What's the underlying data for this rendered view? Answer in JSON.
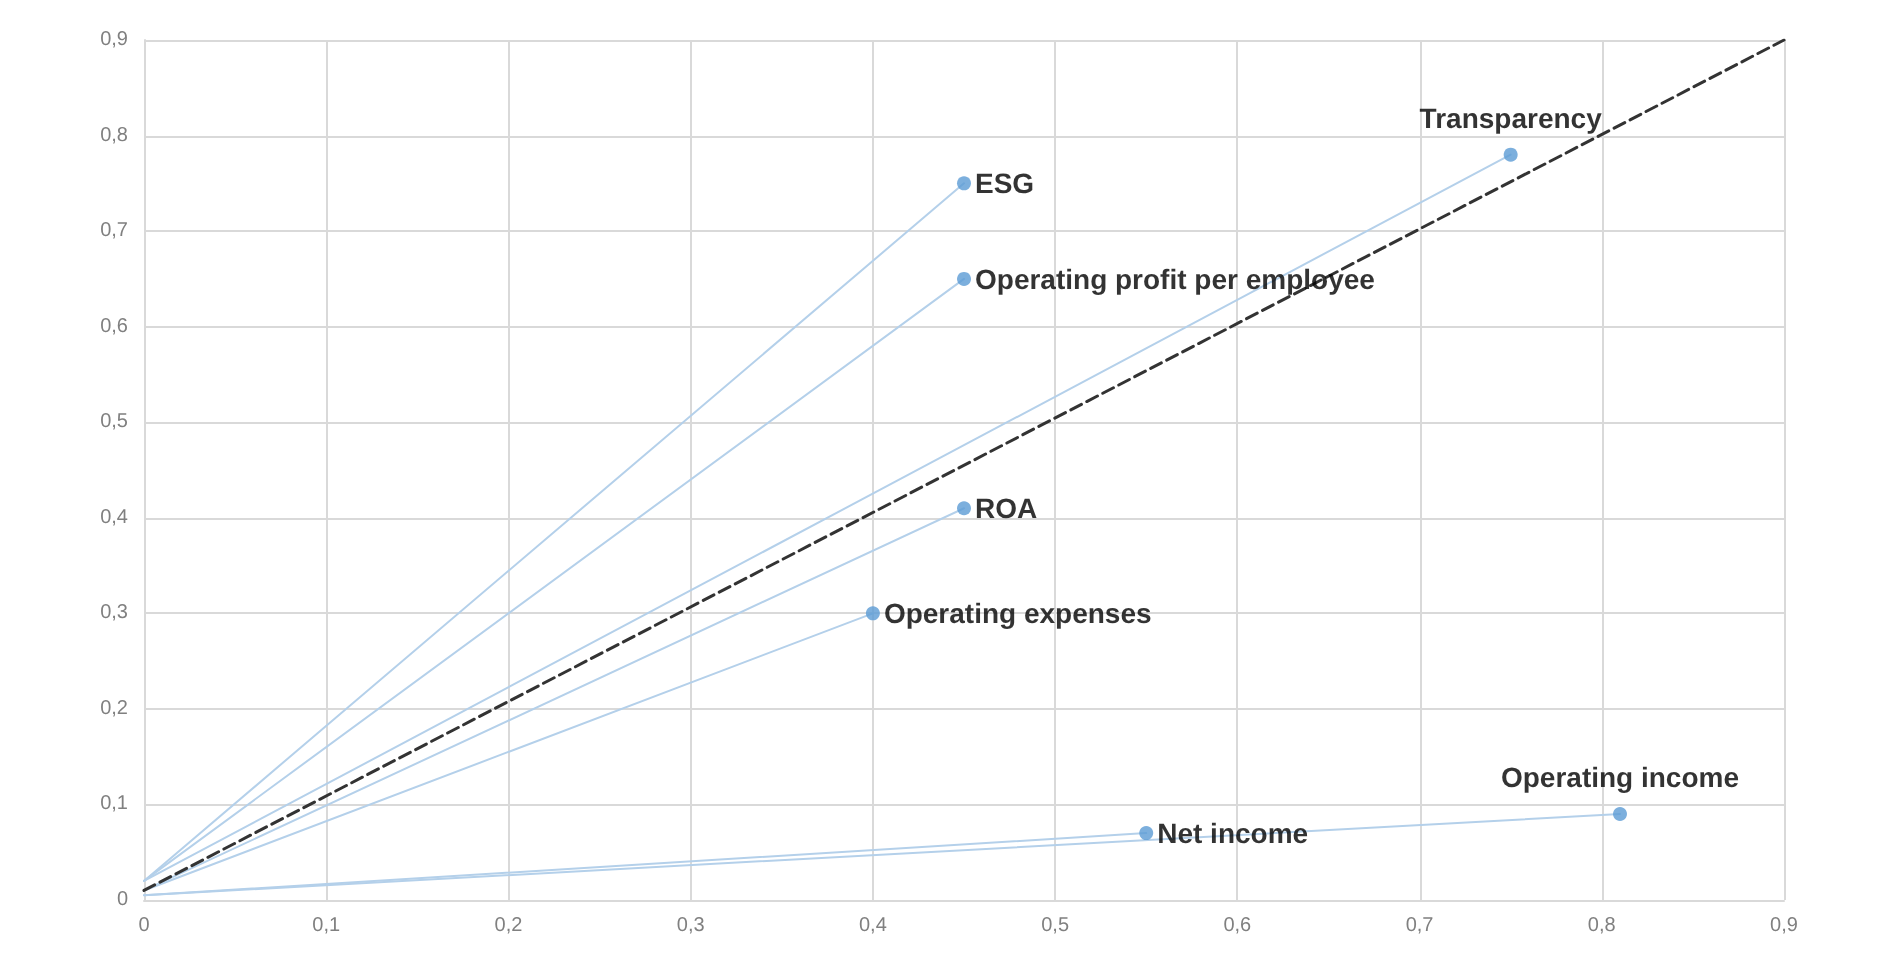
{
  "chart_data": {
    "type": "scatter",
    "xlim": [
      0,
      0.9
    ],
    "ylim": [
      0,
      0.9
    ],
    "xticks": [
      {
        "value": 0,
        "label": "0"
      },
      {
        "value": 0.1,
        "label": "0,1"
      },
      {
        "value": 0.2,
        "label": "0,2"
      },
      {
        "value": 0.3,
        "label": "0,3"
      },
      {
        "value": 0.4,
        "label": "0,4"
      },
      {
        "value": 0.5,
        "label": "0,5"
      },
      {
        "value": 0.6,
        "label": "0,6"
      },
      {
        "value": 0.7,
        "label": "0,7"
      },
      {
        "value": 0.8,
        "label": "0,8"
      },
      {
        "value": 0.9,
        "label": "0,9"
      }
    ],
    "yticks": [
      {
        "value": 0,
        "label": "0"
      },
      {
        "value": 0.1,
        "label": "0,1"
      },
      {
        "value": 0.2,
        "label": "0,2"
      },
      {
        "value": 0.3,
        "label": "0,3"
      },
      {
        "value": 0.4,
        "label": "0,4"
      },
      {
        "value": 0.5,
        "label": "0,5"
      },
      {
        "value": 0.6,
        "label": "0,6"
      },
      {
        "value": 0.7,
        "label": "0,7"
      },
      {
        "value": 0.8,
        "label": "0,8"
      },
      {
        "value": 0.9,
        "label": "0,9"
      }
    ],
    "grid": true,
    "legend": false,
    "marker": "circle",
    "series": [
      {
        "type": "line",
        "color": "#b4d0ea",
        "marker": "none",
        "x": [
          0,
          0.45
        ],
        "values": [
          0.02,
          0.75
        ]
      },
      {
        "type": "line",
        "color": "#b4d0ea",
        "marker": "none",
        "x": [
          0,
          0.45
        ],
        "values": [
          0.02,
          0.65
        ]
      },
      {
        "type": "line",
        "color": "#b4d0ea",
        "marker": "none",
        "x": [
          0,
          0.75
        ],
        "values": [
          0.02,
          0.78
        ]
      },
      {
        "type": "line",
        "color": "#b4d0ea",
        "marker": "none",
        "x": [
          0,
          0.45
        ],
        "values": [
          0.01,
          0.41
        ]
      },
      {
        "type": "line",
        "color": "#b4d0ea",
        "marker": "none",
        "x": [
          0,
          0.4
        ],
        "values": [
          0.01,
          0.3
        ]
      },
      {
        "type": "line",
        "color": "#b4d0ea",
        "marker": "none",
        "x": [
          0,
          0.55
        ],
        "values": [
          0.005,
          0.07
        ]
      },
      {
        "type": "line",
        "color": "#b4d0ea",
        "marker": "none",
        "x": [
          0,
          0.81
        ],
        "values": [
          0.005,
          0.09
        ]
      },
      {
        "type": "line",
        "color": "#333333",
        "marker": "none",
        "line_style": "dashed",
        "x": [
          0,
          0.9
        ],
        "values": [
          0.01,
          0.9
        ]
      },
      {
        "name": "ESG",
        "color": "#5b9bd5",
        "x": [
          0.45
        ],
        "values": [
          0.75
        ]
      },
      {
        "name": "Operating profit per employee",
        "color": "#5b9bd5",
        "x": [
          0.45
        ],
        "values": [
          0.65
        ]
      },
      {
        "name": "Transparency",
        "color": "#5b9bd5",
        "x": [
          0.75
        ],
        "values": [
          0.78
        ]
      },
      {
        "name": "ROA",
        "color": "#5b9bd5",
        "x": [
          0.45
        ],
        "values": [
          0.41
        ]
      },
      {
        "name": "Operating expenses",
        "color": "#5b9bd5",
        "x": [
          0.4
        ],
        "values": [
          0.3
        ]
      },
      {
        "name": "Net income",
        "color": "#5b9bd5",
        "x": [
          0.55
        ],
        "values": [
          0.07
        ]
      },
      {
        "name": "Operating income",
        "color": "#5b9bd5",
        "x": [
          0.81
        ],
        "values": [
          0.09
        ]
      }
    ]
  }
}
